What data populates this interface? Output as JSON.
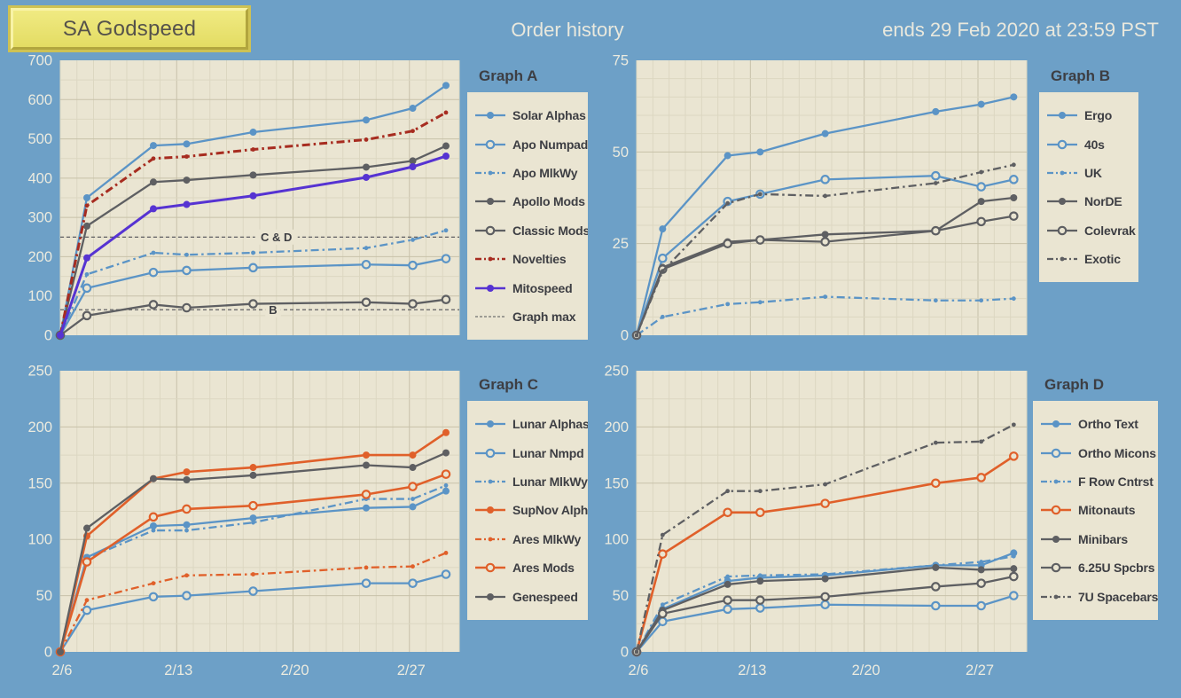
{
  "header": {
    "team_name": "SA Godspeed",
    "title": "Order history",
    "deadline": "ends 29 Feb 2020 at 23:59 PST"
  },
  "colors": {
    "background": "#6da0c7",
    "panel": "#eae5d2",
    "grid_minor": "#dcd7c1",
    "grid_major": "#c7c1a9",
    "axis_text": "#ecebdf",
    "dark_text": "#3d3e43",
    "blue": "#5b94c6",
    "gray": "#5e5f62",
    "red": "#a72c20",
    "purple": "#5633d2",
    "orange": "#e0602a",
    "refline": "#515257"
  },
  "x_axis": {
    "tick_labels": [
      "2/6",
      "2/13",
      "2/20",
      "2/27"
    ],
    "tick_days": [
      0,
      7,
      14,
      21
    ],
    "day_span": 24,
    "sample_days": [
      0,
      1.6,
      5.6,
      7.6,
      11.6,
      18.4,
      21.2,
      23.2
    ]
  },
  "chart_data": [
    {
      "id": "a",
      "title": "Graph A",
      "type": "line",
      "y_max": 700,
      "y_label_step": 100,
      "y_minor_step": 50,
      "reflines": [
        {
          "label": "C & D",
          "value": 250,
          "label_day": 13
        },
        {
          "label": "B",
          "value": 65,
          "label_day": 12.8
        }
      ],
      "series": [
        {
          "label": "Solar Alphas",
          "color": "blue",
          "marker": "filled",
          "dash": "solid",
          "width": 2.3,
          "values": [
            0,
            350,
            483,
            487,
            517,
            548,
            578,
            636
          ]
        },
        {
          "label": "Apo Numpad",
          "color": "blue",
          "marker": "open",
          "dash": "solid",
          "width": 2.3,
          "values": [
            0,
            120,
            160,
            165,
            172,
            180,
            178,
            195
          ]
        },
        {
          "label": "Apo MlkWy",
          "color": "blue",
          "marker": "dot",
          "dash": "dashdot",
          "width": 2.3,
          "values": [
            0,
            155,
            210,
            205,
            210,
            222,
            243,
            267
          ]
        },
        {
          "label": "Apollo Mods",
          "color": "gray",
          "marker": "filled",
          "dash": "solid",
          "width": 2.3,
          "values": [
            0,
            278,
            390,
            395,
            408,
            428,
            444,
            482
          ]
        },
        {
          "label": "Classic Mods",
          "color": "gray",
          "marker": "open",
          "dash": "solid",
          "width": 2.3,
          "values": [
            0,
            50,
            78,
            70,
            80,
            84,
            80,
            91
          ]
        },
        {
          "label": "Novelties",
          "color": "red",
          "marker": "dot",
          "dash": "dashdot",
          "width": 3,
          "values": [
            0,
            330,
            450,
            455,
            473,
            498,
            520,
            567
          ]
        },
        {
          "label": "Mitospeed",
          "color": "purple",
          "marker": "filled",
          "dash": "solid",
          "width": 3,
          "values": [
            0,
            197,
            322,
            333,
            355,
            402,
            429,
            456
          ]
        },
        {
          "label": "Graph max",
          "color": "refline",
          "marker": "none",
          "dash": "dashed",
          "width": 1,
          "values": null
        }
      ]
    },
    {
      "id": "b",
      "title": "Graph B",
      "type": "line",
      "y_max": 75,
      "y_label_step": 25,
      "y_minor_step": 5,
      "reflines": [],
      "series": [
        {
          "label": "Ergo",
          "color": "blue",
          "marker": "filled",
          "dash": "solid",
          "width": 2.3,
          "values": [
            0,
            29,
            49,
            50,
            55,
            61,
            63,
            65
          ]
        },
        {
          "label": "40s",
          "color": "blue",
          "marker": "open",
          "dash": "solid",
          "width": 2.3,
          "values": [
            0,
            21,
            36.5,
            38.5,
            42.5,
            43.5,
            40.5,
            42.5
          ]
        },
        {
          "label": "UK",
          "color": "blue",
          "marker": "dot",
          "dash": "dashdot",
          "width": 2.3,
          "values": [
            0,
            5,
            8.5,
            9,
            10.5,
            9.5,
            9.5,
            10
          ]
        },
        {
          "label": "NorDE",
          "color": "gray",
          "marker": "filled",
          "dash": "solid",
          "width": 2.3,
          "values": [
            0,
            18.5,
            25.5,
            26,
            27.5,
            28.5,
            36.5,
            37.5
          ]
        },
        {
          "label": "Colevrak",
          "color": "gray",
          "marker": "open",
          "dash": "solid",
          "width": 2.3,
          "values": [
            0,
            18,
            25,
            26,
            25.5,
            28.5,
            31,
            32.5
          ]
        },
        {
          "label": "Exotic",
          "color": "gray",
          "marker": "dot",
          "dash": "dashdot",
          "width": 2.3,
          "values": [
            0,
            17.5,
            36,
            38.5,
            38,
            41.5,
            44.5,
            46.5
          ]
        }
      ]
    },
    {
      "id": "c",
      "title": "Graph C",
      "type": "line",
      "y_max": 250,
      "y_label_step": 50,
      "y_minor_step": 25,
      "reflines": [],
      "series": [
        {
          "label": "Lunar Alphas",
          "color": "blue",
          "marker": "filled",
          "dash": "solid",
          "width": 2.3,
          "values": [
            0,
            84,
            112,
            113,
            119,
            128,
            129,
            143
          ]
        },
        {
          "label": "Lunar Nmpd",
          "color": "blue",
          "marker": "open",
          "dash": "solid",
          "width": 2.3,
          "values": [
            0,
            37,
            49,
            50,
            54,
            61,
            61,
            69
          ]
        },
        {
          "label": "Lunar MlkWy",
          "color": "blue",
          "marker": "dot",
          "dash": "dashdot",
          "width": 2.3,
          "values": [
            0,
            83,
            108,
            108,
            115,
            136,
            136,
            148
          ]
        },
        {
          "label": "SupNov Alph",
          "color": "orange",
          "marker": "filled",
          "dash": "solid",
          "width": 2.6,
          "values": [
            0,
            103,
            154,
            160,
            164,
            175,
            175,
            195
          ]
        },
        {
          "label": "Ares MlkWy",
          "color": "orange",
          "marker": "dot",
          "dash": "dashdot",
          "width": 2.3,
          "values": [
            0,
            46,
            61,
            68,
            69,
            75,
            76,
            88
          ]
        },
        {
          "label": "Ares Mods",
          "color": "orange",
          "marker": "open",
          "dash": "solid",
          "width": 2.6,
          "values": [
            0,
            80,
            120,
            127,
            130,
            140,
            147,
            158
          ]
        },
        {
          "label": "Genespeed",
          "color": "gray",
          "marker": "filled",
          "dash": "solid",
          "width": 2.3,
          "values": [
            0,
            110,
            154,
            153,
            157,
            166,
            164,
            177
          ]
        }
      ]
    },
    {
      "id": "d",
      "title": "Graph D",
      "type": "line",
      "y_max": 250,
      "y_label_step": 50,
      "y_minor_step": 25,
      "reflines": [],
      "series": [
        {
          "label": "Ortho Text",
          "color": "blue",
          "marker": "filled",
          "dash": "solid",
          "width": 2.3,
          "values": [
            0,
            38,
            63,
            66,
            68,
            77,
            77,
            88
          ]
        },
        {
          "label": "Ortho Micons",
          "color": "blue",
          "marker": "open",
          "dash": "solid",
          "width": 2.3,
          "values": [
            0,
            27,
            38,
            39,
            42,
            41,
            41,
            50
          ]
        },
        {
          "label": "F Row Cntrst",
          "color": "blue",
          "marker": "dot",
          "dash": "dashdot",
          "width": 2.3,
          "values": [
            0,
            42,
            67,
            68,
            69,
            77,
            80,
            85
          ]
        },
        {
          "label": "Mitonauts",
          "color": "orange",
          "marker": "open",
          "dash": "solid",
          "width": 2.6,
          "values": [
            0,
            87,
            124,
            124,
            132,
            150,
            155,
            174
          ]
        },
        {
          "label": "Minibars",
          "color": "gray",
          "marker": "filled",
          "dash": "solid",
          "width": 2.3,
          "values": [
            0,
            37,
            60,
            63,
            65,
            75,
            73,
            74
          ]
        },
        {
          "label": "6.25U Spcbrs",
          "color": "gray",
          "marker": "open",
          "dash": "solid",
          "width": 2.3,
          "values": [
            0,
            34,
            46,
            46,
            49,
            58,
            61,
            67
          ]
        },
        {
          "label": "7U Spacebars",
          "color": "gray",
          "marker": "dot",
          "dash": "dashdot",
          "width": 2.3,
          "values": [
            0,
            104,
            143,
            143,
            149,
            186,
            187,
            202
          ]
        }
      ]
    }
  ]
}
